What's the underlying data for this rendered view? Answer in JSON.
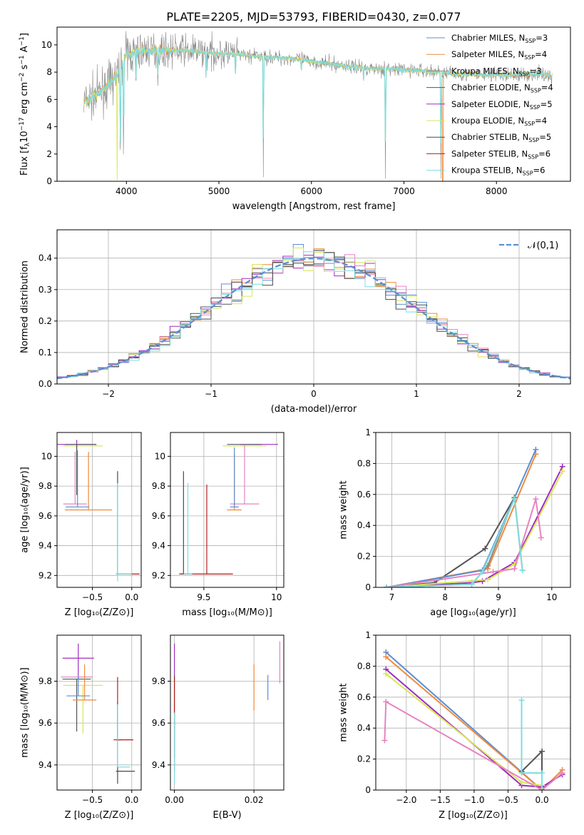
{
  "title": "PLATE=2205, MJD=53793, FIBERID=0430, z=0.077",
  "colors": {
    "chabrier_miles": "#5b8fd6",
    "salpeter_miles": "#ef8a3c",
    "kroupa_miles": "#8a8a8a",
    "chabrier_elodie": "#555555",
    "salpeter_elodie": "#a02bc0",
    "kroupa_elodie": "#d8e65a",
    "chabrier_stelib": "#4a4a4a",
    "salpeter_stelib": "#b21e1e",
    "kroupa_stelib": "#7fdce0",
    "pink": "#e584c0",
    "normal_curve": "#5b8fd6"
  },
  "chart_data": [
    {
      "type": "line",
      "id": "spectrum",
      "title": "PLATE=2205, MJD=53793, FIBERID=0430, z=0.077",
      "xlabel": "wavelength [Angstrom, rest frame]",
      "ylabel_parts": [
        "Flux [f",
        "λ",
        "10",
        "−17",
        " erg cm",
        "−2",
        " s",
        "−1",
        " A",
        "−1",
        "]"
      ],
      "xlim": [
        3250,
        8800
      ],
      "ylim": [
        0,
        11.3
      ],
      "xticks": [
        4000,
        5000,
        6000,
        7000,
        8000
      ],
      "yticks": [
        0,
        2,
        4,
        6,
        8,
        10
      ],
      "legend": [
        {
          "label": "Chabrier MILES, N",
          "sub": "SSP",
          "suffix": "=3",
          "color": "#5b8fd6"
        },
        {
          "label": "Salpeter MILES, N",
          "sub": "SSP",
          "suffix": "=4",
          "color": "#ef8a3c"
        },
        {
          "label": "Kroupa MILES, N",
          "sub": "SSP",
          "suffix": "=3",
          "color": "#8a8a8a"
        },
        {
          "label": "Chabrier ELODIE, N",
          "sub": "SSP",
          "suffix": "=4",
          "color": "#555555"
        },
        {
          "label": "Salpeter ELODIE, N",
          "sub": "SSP",
          "suffix": "=5",
          "color": "#a02bc0"
        },
        {
          "label": "Kroupa ELODIE, N",
          "sub": "SSP",
          "suffix": "=4",
          "color": "#d8e65a"
        },
        {
          "label": "Chabrier STELIB, N",
          "sub": "SSP",
          "suffix": "=5",
          "color": "#4a4a4a"
        },
        {
          "label": "Salpeter STELIB, N",
          "sub": "SSP",
          "suffix": "=6",
          "color": "#b21e1e"
        },
        {
          "label": "Kroupa STELIB, N",
          "sub": "SSP",
          "suffix": "=6",
          "color": "#7fdce0"
        }
      ],
      "continuum": [
        [
          3540,
          5.8
        ],
        [
          3650,
          6.2
        ],
        [
          3800,
          7.0
        ],
        [
          3900,
          7.8
        ],
        [
          4000,
          9.3
        ],
        [
          4200,
          9.6
        ],
        [
          4400,
          9.6
        ],
        [
          4600,
          9.6
        ],
        [
          4900,
          9.4
        ],
        [
          5200,
          9.3
        ],
        [
          5500,
          9.1
        ],
        [
          5800,
          9.0
        ],
        [
          6000,
          8.8
        ],
        [
          6300,
          8.5
        ],
        [
          6600,
          8.3
        ],
        [
          6900,
          8.2
        ],
        [
          7200,
          8.1
        ],
        [
          7500,
          7.9
        ],
        [
          7800,
          7.8
        ],
        [
          8000,
          7.8
        ],
        [
          8300,
          7.8
        ],
        [
          8500,
          7.9
        ],
        [
          8600,
          7.6
        ]
      ],
      "absorption": [
        [
          3934,
          0.1
        ],
        [
          3969,
          0.6
        ],
        [
          4102,
          6.5
        ],
        [
          4340,
          7.0
        ],
        [
          4861,
          7.4
        ],
        [
          5177,
          7.6
        ],
        [
          5480,
          0.3
        ],
        [
          5890,
          7.8
        ],
        [
          6563,
          7.2
        ],
        [
          6800,
          0.2
        ],
        [
          7400,
          0.2
        ]
      ],
      "noise_amplitude": 0.9
    },
    {
      "type": "histogram",
      "id": "residuals",
      "xlabel": "(data-model)/error",
      "ylabel": "Normed distribution",
      "xlim": [
        -2.5,
        2.5
      ],
      "ylim": [
        0,
        0.49
      ],
      "xticks": [
        -2,
        -1,
        0,
        1,
        2
      ],
      "xtick_labels": [
        "−2",
        "−1",
        "0",
        "1",
        "2"
      ],
      "yticks": [
        0.0,
        0.1,
        0.2,
        0.3,
        0.4
      ],
      "ytick_labels": [
        "0.0",
        "0.1",
        "0.2",
        "0.3",
        "0.4"
      ],
      "grid": true,
      "bin_edges": [
        -2.5,
        2.5
      ],
      "bin_width": 0.1,
      "curve_legend": "𝒩(0,1)",
      "legend_position": "top-right"
    },
    {
      "type": "scatter",
      "id": "age-vs-Z",
      "xlabel": "Z [log₁₀(Z/Z⊙)]",
      "ylabel": "age  [log₁₀(age/yr)]",
      "xlim": [
        -0.95,
        0.12
      ],
      "ylim": [
        9.12,
        10.16
      ],
      "xticks": [
        -0.5,
        0.0
      ],
      "xtick_labels": [
        "−0.5",
        "0.0"
      ],
      "yticks": [
        9.2,
        9.4,
        9.6,
        9.8,
        10.0
      ],
      "grid": true,
      "errorbars": [
        {
          "x": -0.7,
          "y": 10.08,
          "xerr": 0.25,
          "yerr": [
            0.08,
            0.03
          ],
          "color": "#a02bc0"
        },
        {
          "x": -0.62,
          "y": 10.07,
          "xerr": 0.25,
          "yerr": [
            0.0,
            0.0
          ],
          "color": "#d8e65a"
        },
        {
          "x": -0.65,
          "y": 10.08,
          "xerr": 0.2,
          "yerr": [
            0.0,
            0.0
          ],
          "color": "#555555"
        },
        {
          "x": -0.55,
          "y": 9.64,
          "xerr": 0.3,
          "yerr": [
            0.0,
            0.39
          ],
          "color": "#ef8a3c"
        },
        {
          "x": -0.72,
          "y": 9.68,
          "xerr": 0.15,
          "yerr": [
            0.0,
            0.35
          ],
          "color": "#e584c0"
        },
        {
          "x": -0.69,
          "y": 9.66,
          "xerr": 0.15,
          "yerr": [
            0.0,
            0.38
          ],
          "color": "#5b8fd6"
        },
        {
          "x": -0.7,
          "y": 9.92,
          "xerr": 0.0,
          "yerr": [
            0.18,
            0.16
          ],
          "color": "#555555"
        },
        {
          "x": -0.18,
          "y": 9.21,
          "xerr": 0.0,
          "yerr": [
            0.0,
            0.69
          ],
          "color": "#4a4a4a"
        },
        {
          "x": -0.18,
          "y": 9.82,
          "xerr": 0.0,
          "yerr": [
            0.66,
            0.0
          ],
          "color": "#7fdce0"
        },
        {
          "x": -0.05,
          "y": 9.21,
          "xerr": 0.15,
          "yerr": [
            0.0,
            0.0
          ],
          "color": "#b21e1e"
        },
        {
          "x": -0.1,
          "y": 9.21,
          "xerr": 0.1,
          "yerr": [
            0.0,
            0.0
          ],
          "color": "#7fdce0"
        }
      ]
    },
    {
      "type": "scatter",
      "id": "age-vs-mass",
      "xlabel": "mass [log₁₀(M/M⊙)]",
      "ylabel": "",
      "xlim": [
        9.27,
        10.05
      ],
      "ylim": [
        9.12,
        10.16
      ],
      "xticks": [
        9.5,
        10.0
      ],
      "yticks": [
        9.2,
        9.4,
        9.6,
        9.8,
        10.0
      ],
      "grid": true,
      "errorbars": [
        {
          "x": 9.88,
          "y": 10.08,
          "xerr": 0.13,
          "yerr": [
            0.0,
            0.0
          ],
          "color": "#a02bc0"
        },
        {
          "x": 9.78,
          "y": 10.07,
          "xerr": 0.15,
          "yerr": [
            0.0,
            0.0
          ],
          "color": "#d8e65a"
        },
        {
          "x": 9.78,
          "y": 10.08,
          "xerr": 0.12,
          "yerr": [
            0.0,
            0.0
          ],
          "color": "#555555"
        },
        {
          "x": 9.71,
          "y": 9.64,
          "xerr": 0.05,
          "yerr": [
            0.0,
            0.38
          ],
          "color": "#ef8a3c"
        },
        {
          "x": 9.78,
          "y": 9.68,
          "xerr": 0.1,
          "yerr": [
            0.0,
            0.4
          ],
          "color": "#e584c0"
        },
        {
          "x": 9.71,
          "y": 9.66,
          "xerr": 0.03,
          "yerr": [
            0.0,
            0.4
          ],
          "color": "#5b8fd6"
        },
        {
          "x": 9.36,
          "y": 9.21,
          "xerr": 0.03,
          "yerr": [
            0.0,
            0.69
          ],
          "color": "#4a4a4a"
        },
        {
          "x": 9.52,
          "y": 9.21,
          "xerr": 0.18,
          "yerr": [
            0.0,
            0.6
          ],
          "color": "#b21e1e"
        },
        {
          "x": 9.39,
          "y": 9.21,
          "xerr": 0.03,
          "yerr": [
            0.0,
            0.61
          ],
          "color": "#7fdce0"
        }
      ]
    },
    {
      "type": "line",
      "id": "massweight-vs-age",
      "xlabel": "age  [log₁₀(age/yr)]",
      "ylabel": "mass weight",
      "xlim": [
        6.7,
        10.35
      ],
      "ylim": [
        0,
        1.0
      ],
      "xticks": [
        7,
        8,
        9,
        10
      ],
      "yticks": [
        0.0,
        0.2,
        0.4,
        0.6,
        0.8,
        1.0
      ],
      "grid": true,
      "series": [
        {
          "color": "#555555",
          "x": [
            6.9,
            7.8,
            8.75,
            9.3
          ],
          "y": [
            0.0,
            0.03,
            0.25,
            0.58
          ]
        },
        {
          "color": "#ef8a3c",
          "x": [
            6.9,
            8.8,
            9.7
          ],
          "y": [
            0.0,
            0.12,
            0.86
          ]
        },
        {
          "color": "#5b8fd6",
          "x": [
            6.9,
            8.7,
            9.7
          ],
          "y": [
            0.0,
            0.11,
            0.89
          ]
        },
        {
          "color": "#a02bc0",
          "x": [
            6.9,
            8.5,
            8.7,
            9.3,
            10.2
          ],
          "y": [
            0.0,
            0.03,
            0.04,
            0.16,
            0.78
          ]
        },
        {
          "color": "#d8e65a",
          "x": [
            6.9,
            8.8,
            9.3,
            10.2
          ],
          "y": [
            0.0,
            0.05,
            0.15,
            0.75
          ]
        },
        {
          "color": "#e584c0",
          "x": [
            6.9,
            8.9,
            9.3,
            9.7,
            9.8
          ],
          "y": [
            0.0,
            0.1,
            0.12,
            0.57,
            0.32
          ]
        },
        {
          "color": "#8a8a8a",
          "x": [
            6.9,
            8.5,
            8.8,
            9.3,
            9.45
          ],
          "y": [
            0.0,
            0.02,
            0.14,
            0.58,
            0.11
          ]
        },
        {
          "color": "#7fdce0",
          "x": [
            6.9,
            8.5,
            8.7,
            9.3,
            9.45
          ],
          "y": [
            0.0,
            0.02,
            0.1,
            0.57,
            0.11
          ]
        }
      ]
    },
    {
      "type": "scatter",
      "id": "mass-vs-Z",
      "xlabel": "Z [log₁₀(Z/Z⊙)]",
      "ylabel": "mass [log₁₀(M/M⊙)]",
      "xlim": [
        -0.95,
        0.12
      ],
      "ylim": [
        9.28,
        10.02
      ],
      "xticks": [
        -0.5,
        0.0
      ],
      "xtick_labels": [
        "−0.5",
        "0.0"
      ],
      "yticks": [
        9.4,
        9.6,
        9.8
      ],
      "grid": true,
      "errorbars": [
        {
          "x": -0.68,
          "y": 9.91,
          "xerr": 0.2,
          "yerr": [
            0.1,
            0.07
          ],
          "color": "#a02bc0"
        },
        {
          "x": -0.7,
          "y": 9.82,
          "xerr": 0.2,
          "yerr": [
            0.0,
            0.0
          ],
          "color": "#e584c0"
        },
        {
          "x": -0.62,
          "y": 9.78,
          "xerr": 0.25,
          "yerr": [
            0.23,
            0.0
          ],
          "color": "#d8e65a"
        },
        {
          "x": -0.7,
          "y": 9.81,
          "xerr": 0.18,
          "yerr": [
            0.25,
            0.0
          ],
          "color": "#555555"
        },
        {
          "x": -0.68,
          "y": 9.73,
          "xerr": 0.15,
          "yerr": [
            0.0,
            0.1
          ],
          "color": "#5b8fd6"
        },
        {
          "x": -0.6,
          "y": 9.71,
          "xerr": 0.15,
          "yerr": [
            0.0,
            0.17
          ],
          "color": "#ef8a3c"
        },
        {
          "x": -0.18,
          "y": 9.52,
          "xerr": 0.05,
          "yerr": [
            0.0,
            0.3
          ],
          "color": "#b21e1e"
        },
        {
          "x": -0.08,
          "y": 9.52,
          "xerr": 0.1,
          "yerr": [
            0.0,
            0.0
          ],
          "color": "#b21e1e"
        },
        {
          "x": -0.18,
          "y": 9.37,
          "xerr": 0.0,
          "yerr": [
            0.06,
            0.33
          ],
          "color": "#4a4a4a"
        },
        {
          "x": -0.08,
          "y": 9.37,
          "xerr": 0.12,
          "yerr": [
            0.0,
            0.0
          ],
          "color": "#4a4a4a"
        },
        {
          "x": -0.1,
          "y": 9.39,
          "xerr": 0.08,
          "yerr": [
            0.0,
            0.0
          ],
          "color": "#7fdce0"
        },
        {
          "x": -0.18,
          "y": 9.39,
          "xerr": 0.0,
          "yerr": [
            0.0,
            0.3
          ],
          "color": "#7fdce0"
        }
      ]
    },
    {
      "type": "scatter",
      "id": "mass-vs-ebv",
      "xlabel": "E(B-V)",
      "ylabel": "",
      "xlim": [
        -0.001,
        0.0275
      ],
      "ylim": [
        9.28,
        10.02
      ],
      "xticks": [
        0.0,
        0.02
      ],
      "xtick_labels": [
        "0.00",
        "0.02"
      ],
      "yticks": [
        9.4,
        9.6,
        9.8
      ],
      "grid": true,
      "errorbars": [
        {
          "x": 0.0,
          "y": 9.91,
          "xerr": 0.0,
          "yerr": [
            0.1,
            0.07
          ],
          "color": "#a02bc0"
        },
        {
          "x": 0.0,
          "y": 9.78,
          "xerr": 0.0,
          "yerr": [
            0.23,
            0.05
          ],
          "color": "#d8e65a"
        },
        {
          "x": 0.0,
          "y": 9.73,
          "xerr": 0.0,
          "yerr": [
            0.3,
            0.1
          ],
          "color": "#555555"
        },
        {
          "x": 0.0,
          "y": 9.52,
          "xerr": 0.0,
          "yerr": [
            0.15,
            0.3
          ],
          "color": "#b21e1e"
        },
        {
          "x": 0.0,
          "y": 9.45,
          "xerr": 0.0,
          "yerr": [
            0.14,
            0.2
          ],
          "color": "#7fdce0"
        },
        {
          "x": 0.02,
          "y": 9.77,
          "xerr": 0.0,
          "yerr": [
            0.11,
            0.11
          ],
          "color": "#ef8a3c"
        },
        {
          "x": 0.0235,
          "y": 9.77,
          "xerr": 0.0,
          "yerr": [
            0.06,
            0.06
          ],
          "color": "#5b8fd6"
        },
        {
          "x": 0.0265,
          "y": 9.89,
          "xerr": 0.0,
          "yerr": [
            0.1,
            0.1
          ],
          "color": "#e584c0"
        }
      ]
    },
    {
      "type": "line",
      "id": "massweight-vs-Z",
      "xlabel": "Z [log₁₀(Z/Z⊙)]",
      "ylabel": "mass weight",
      "xlim": [
        -2.45,
        0.42
      ],
      "ylim": [
        0,
        1.0
      ],
      "xticks": [
        -2.0,
        -1.5,
        -1.0,
        -0.5,
        0.0
      ],
      "xtick_labels": [
        "−2.0",
        "−1.5",
        "−1.0",
        "−0.5",
        "0.0"
      ],
      "yticks": [
        0.0,
        0.2,
        0.4,
        0.6,
        0.8,
        1.0
      ],
      "grid": true,
      "series": [
        {
          "color": "#5b8fd6",
          "x": [
            -2.3,
            0.0
          ],
          "y": [
            0.89,
            0.0
          ]
        },
        {
          "color": "#ef8a3c",
          "x": [
            -2.3,
            0.0,
            0.3
          ],
          "y": [
            0.86,
            0.0,
            0.13
          ]
        },
        {
          "color": "#a02bc0",
          "x": [
            -2.3,
            -0.3,
            0.0,
            0.3
          ],
          "y": [
            0.78,
            0.03,
            0.02,
            0.1
          ]
        },
        {
          "color": "#d8e65a",
          "x": [
            -2.3,
            -0.3,
            0.0
          ],
          "y": [
            0.75,
            0.05,
            0.03
          ]
        },
        {
          "color": "#e584c0",
          "x": [
            -2.32,
            -2.3,
            0.0,
            0.3
          ],
          "y": [
            0.32,
            0.57,
            0.0,
            0.11
          ]
        },
        {
          "color": "#555555",
          "x": [
            -0.3,
            0.0,
            0.0
          ],
          "y": [
            0.12,
            0.25,
            0.0
          ]
        },
        {
          "color": "#7fdce0",
          "x": [
            -0.3,
            -0.3,
            0.0,
            0.0
          ],
          "y": [
            0.58,
            0.11,
            0.11,
            0.0
          ]
        }
      ]
    }
  ]
}
